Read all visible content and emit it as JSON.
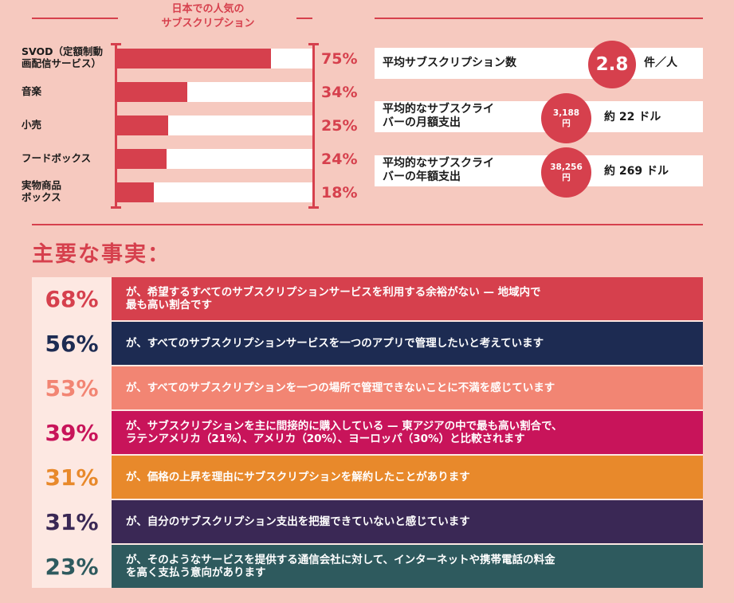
{
  "chart_data": {
    "type": "bar",
    "orientation": "horizontal",
    "title": "日本での人気の\nサブスクリプション",
    "categories": [
      "SVOD（定額制動\n画配信サービス）",
      "音楽",
      "小売",
      "フードボックス",
      "実物商品\nボックス"
    ],
    "values": [
      75,
      34,
      25,
      24,
      18
    ],
    "value_labels": [
      "75%",
      "34%",
      "25%",
      "24%",
      "18%"
    ],
    "xlim": [
      0,
      95
    ],
    "bar_color": "#d6404d",
    "track_color": "#ffffff"
  },
  "stats": [
    {
      "label": "平均サブスクリプション数",
      "value": "2.8",
      "unit": "件／人"
    },
    {
      "label": "平均的なサブスクライ\nバーの月額支出",
      "value_line1": "3,188",
      "value_line2": "円",
      "unit": "約 22 ドル"
    },
    {
      "label": "平均的なサブスクライ\nバーの年額支出",
      "value_line1": "38,256",
      "value_line2": "円",
      "unit": "約 269 ドル"
    }
  ],
  "key_facts_heading": "主要な事実：",
  "facts": [
    {
      "pct": "68%",
      "text": "が、希望するすべてのサブスクリプションサービスを利用する余裕がない — 地域内で\n最も高い割合です",
      "color": "#d6404d"
    },
    {
      "pct": "56%",
      "text": "が、すべてのサブスクリプションサービスを一つのアプリで管理したいと考えています",
      "color": "#1d2b52"
    },
    {
      "pct": "53%",
      "text": "が、すべてのサブスクリプションを一つの場所で管理できないことに不満を感じています",
      "color": "#f28573"
    },
    {
      "pct": "39%",
      "text": "が、サブスクリプションを主に間接的に購入している — 東アジアの中で最も高い割合で、\nラテンアメリカ（21%）、アメリカ（20%）、ヨーロッパ（30%）と比較されます",
      "color": "#c8145a"
    },
    {
      "pct": "31%",
      "text": "が、価格の上昇を理由にサブスクリプションを解約したことがあります",
      "color": "#e8892b"
    },
    {
      "pct": "31%",
      "text": "が、自分のサブスクリプション支出を把握できていないと感じています",
      "color": "#3a2855"
    },
    {
      "pct": "23%",
      "text": "が、そのようなサービスを提供する通信会社に対して、インターネットや携帯電話の料金\nを高く支払う意向があります",
      "color": "#2e5a5e"
    }
  ]
}
